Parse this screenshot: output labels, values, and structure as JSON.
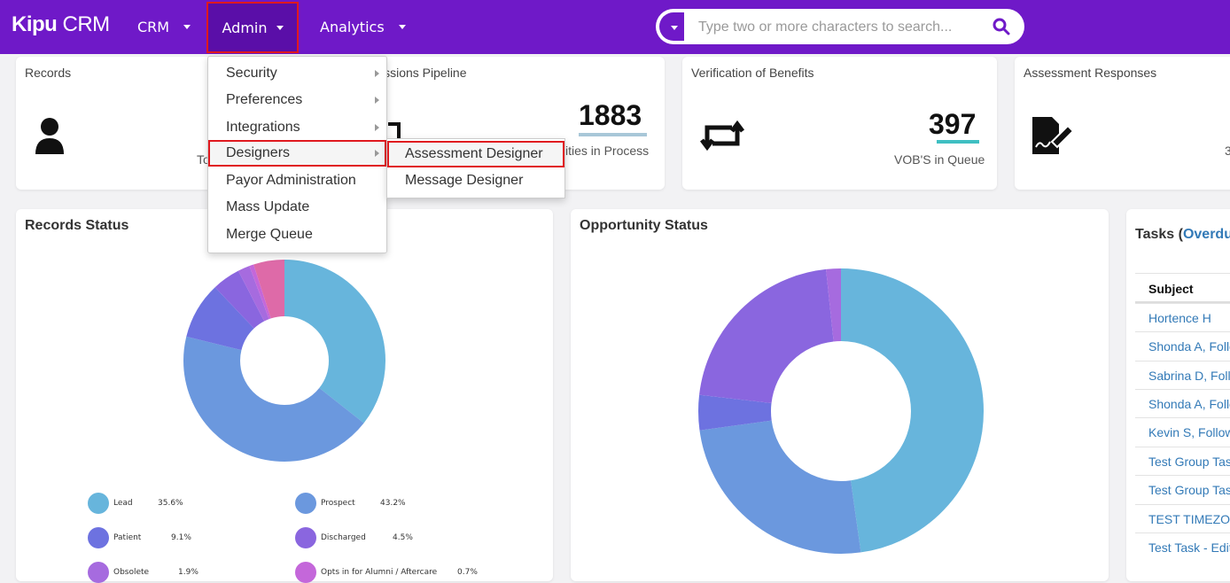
{
  "app": {
    "logo_bold": "Kipu",
    "logo_light": "CRM"
  },
  "nav": {
    "crm": "CRM",
    "admin": "Admin",
    "analytics": "Analytics"
  },
  "search": {
    "placeholder": "Type two or more characters to search..."
  },
  "cards": {
    "records": {
      "title": "Records",
      "sub_partial": "To"
    },
    "pipeline": {
      "title_partial": "issions Pipeline",
      "value": "1883",
      "sub_partial": "ities in Process"
    },
    "vob": {
      "title": "Verification of Benefits",
      "value": "397",
      "sub": "VOB'S in Queue"
    },
    "assessment": {
      "title": "Assessment Responses",
      "value_partial": "3"
    }
  },
  "admin_menu": {
    "items": [
      {
        "label": "Security",
        "has_submenu": true
      },
      {
        "label": "Preferences",
        "has_submenu": true
      },
      {
        "label": "Integrations",
        "has_submenu": true
      },
      {
        "label": "Designers",
        "has_submenu": true
      },
      {
        "label": "Payor Administration",
        "has_submenu": false
      },
      {
        "label": "Mass Update",
        "has_submenu": false
      },
      {
        "label": "Merge Queue",
        "has_submenu": false
      }
    ],
    "designers_submenu": [
      "Assessment Designer",
      "Message Designer"
    ]
  },
  "records_status": {
    "title": "Records Status",
    "legend": [
      {
        "label": "Lead",
        "pct": "35.6%",
        "color": "#67b5dc"
      },
      {
        "label": "Prospect",
        "pct": "43.2%",
        "color": "#6b98de"
      },
      {
        "label": "Patient",
        "pct": "9.1%",
        "color": "#6d72e0"
      },
      {
        "label": "Discharged",
        "pct": "4.5%",
        "color": "#8a66df"
      },
      {
        "label": "Obsolete",
        "pct": "1.9%",
        "color": "#a66bdf"
      },
      {
        "label": "Opts in for Alumni / Aftercare",
        "pct": "0.7%",
        "color": "#c467da"
      }
    ]
  },
  "opportunity_status": {
    "title": "Opportunity Status"
  },
  "tasks": {
    "title_prefix": "Tasks (",
    "title_link": "Overdu",
    "column": "Subject",
    "rows": [
      "Hortence H",
      "Shonda A, Follo",
      "Sabrina D, Follo",
      "Shonda A, Follo",
      "Kevin S, Follow",
      "Test Group Tas",
      "Test Group Tas",
      "TEST TIMEZON",
      "Test Task - Edit"
    ]
  },
  "colors": {
    "topbar": "#6f19c8",
    "highlight": "#e0191f",
    "link": "#337ab7"
  }
}
